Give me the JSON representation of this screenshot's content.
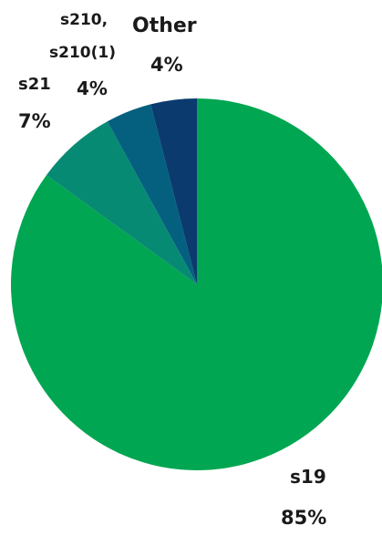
{
  "chart_data": {
    "type": "pie",
    "categories": [
      "s19",
      "s21",
      "s210, s210(1)",
      "Other"
    ],
    "values": [
      85,
      7,
      4,
      4
    ],
    "labels": [
      {
        "name_lines": [
          "s19"
        ],
        "value": "85%"
      },
      {
        "name_lines": [
          "s21"
        ],
        "value": "7%"
      },
      {
        "name_lines": [
          "s210,",
          "s210(1)"
        ],
        "value": "4%"
      },
      {
        "name_lines": [
          "Other"
        ],
        "value": "4%"
      }
    ],
    "colors": [
      "#00a651",
      "#078a73",
      "#04607e",
      "#0a3a6e"
    ]
  }
}
